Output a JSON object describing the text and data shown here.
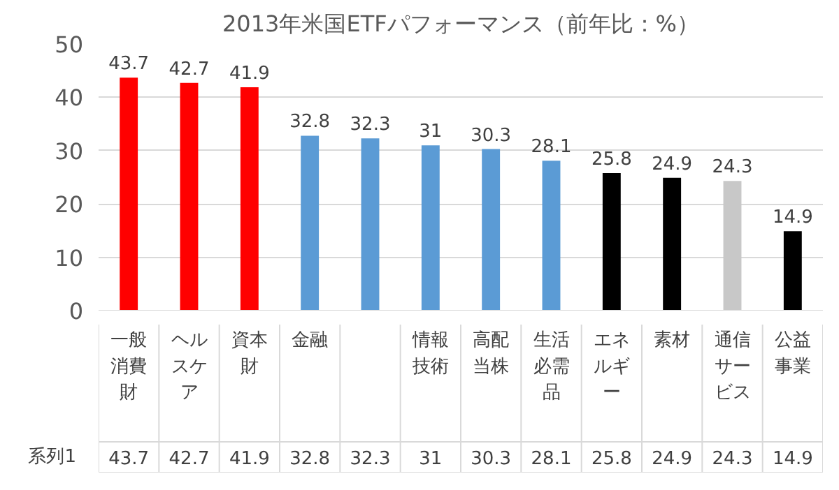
{
  "chart_data": {
    "type": "bar",
    "title": "2013年米国ETFパフォーマンス（前年比：%）",
    "categories": [
      "一般消費財",
      "ヘルスケア",
      "資本財",
      "金融",
      null,
      "情報技術",
      "高配当株",
      "生活必需品",
      "エネルギー",
      "素材",
      "通信サービス",
      "公益事業"
    ],
    "series": [
      {
        "name": "系列1",
        "colors": [
          "#ff0000",
          "#ff0000",
          "#ff0000",
          "#5b9bd5",
          "#5b9bd5",
          "#5b9bd5",
          "#5b9bd5",
          "#5b9bd5",
          "#000000",
          "#000000",
          "#c8c8c8",
          "#000000"
        ],
        "values": [
          43.7,
          42.7,
          41.9,
          32.8,
          32.3,
          31,
          30.3,
          28.1,
          25.8,
          24.9,
          24.3,
          14.9
        ],
        "value_labels": [
          "43.7",
          "42.7",
          "41.9",
          "32.8",
          "32.3",
          "31",
          "30.3",
          "28.1",
          "25.8",
          "24.9",
          "24.3",
          "14.9"
        ]
      }
    ],
    "ylim": [
      0,
      50
    ],
    "yticks": [
      0,
      10,
      20,
      30,
      40,
      50
    ],
    "grid": "y",
    "data_labels": true
  }
}
